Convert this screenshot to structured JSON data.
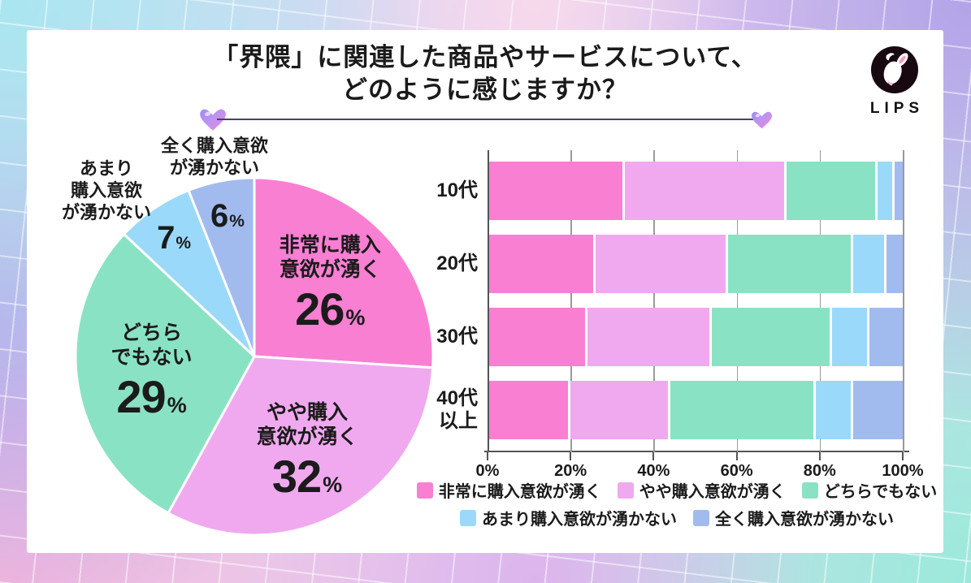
{
  "header": {
    "title_line1": "「界隈」に関連した商品やサービスについて、",
    "title_line2": "どのように感じますか？",
    "logo_text": "LIPS"
  },
  "palette": {
    "very_interested": "#F97FD3",
    "somewhat_interested": "#F0A9EF",
    "neutral": "#8AE2C5",
    "not_very_interested": "#9AD9F9",
    "not_at_all_interested": "#A2BBEF",
    "divider_line": "#44446E",
    "text": "#1B1B1B"
  },
  "chart_data": [
    {
      "type": "pie",
      "unit": "%",
      "start_angle_deg": 0,
      "direction": "clockwise",
      "slices": [
        {
          "label": "非常に購入意欲が湧く",
          "label_lines": [
            "非常に購入",
            "意欲が湧く"
          ],
          "value": 26,
          "color": "#F97FD3",
          "label_style": "inside"
        },
        {
          "label": "やや購入意欲が湧く",
          "label_lines": [
            "やや購入",
            "意欲が湧く"
          ],
          "value": 32,
          "color": "#F0A9EF",
          "label_style": "inside"
        },
        {
          "label": "どちらでもない",
          "label_lines": [
            "どちら",
            "でもない"
          ],
          "value": 29,
          "color": "#8AE2C5",
          "label_style": "inside"
        },
        {
          "label": "あまり購入意欲が湧かない",
          "label_lines": [
            "あまり",
            "購入意欲",
            "が湧かない"
          ],
          "value": 7,
          "color": "#9AD9F9",
          "label_style": "outside"
        },
        {
          "label": "全く購入意欲が湧かない",
          "label_lines": [
            "全く購入意欲",
            "が湧かない"
          ],
          "value": 6,
          "color": "#A2BBEF",
          "label_style": "outside"
        }
      ]
    },
    {
      "type": "bar",
      "orientation": "horizontal",
      "stacked": true,
      "xlim": [
        0,
        100
      ],
      "x_ticks": [
        "0%",
        "20%",
        "40%",
        "60%",
        "80%",
        "100%"
      ],
      "grid": true,
      "categories": [
        {
          "label": "10代",
          "lines": [
            "10代"
          ]
        },
        {
          "label": "20代",
          "lines": [
            "20代"
          ]
        },
        {
          "label": "30代",
          "lines": [
            "30代"
          ]
        },
        {
          "label": "40代以上",
          "lines": [
            "40代",
            "以上"
          ]
        }
      ],
      "series": [
        {
          "name": "非常に購入意欲が湧く",
          "color": "#F97FD3",
          "values": [
            33,
            26,
            24,
            20
          ]
        },
        {
          "name": "やや購入意欲が湧く",
          "color": "#F0A9EF",
          "values": [
            39,
            32,
            30,
            24
          ]
        },
        {
          "name": "どちらでもない",
          "color": "#8AE2C5",
          "values": [
            22,
            30,
            29,
            35
          ]
        },
        {
          "name": "あまり購入意欲が湧かない",
          "color": "#9AD9F9",
          "values": [
            4,
            8,
            9,
            9
          ]
        },
        {
          "name": "全く購入意欲が湧かない",
          "color": "#A2BBEF",
          "values": [
            2,
            4,
            8,
            12
          ]
        }
      ],
      "legend_position": "bottom",
      "legend_rows": [
        [
          0,
          1,
          2
        ],
        [
          3,
          4
        ]
      ]
    }
  ]
}
